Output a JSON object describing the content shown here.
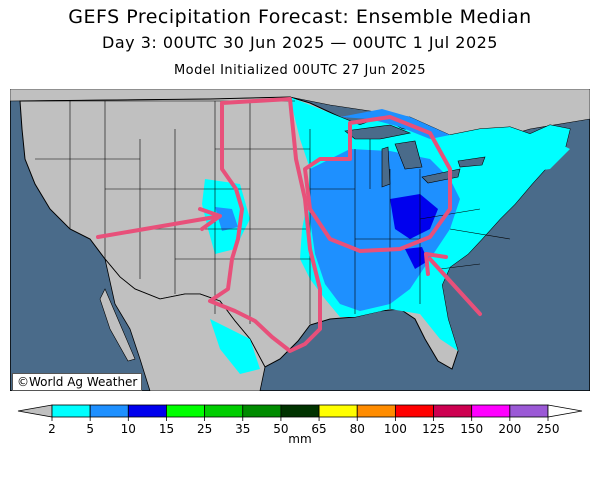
{
  "header": {
    "title": "GEFS Precipitation Forecast: Ensemble Median",
    "valid": "Day 3: 00UTC 30 Jun 2025 — 00UTC 1 Jul 2025",
    "init": "Model Initialized 00UTC 27 Jun 2025"
  },
  "map": {
    "credit": "©World Ag Weather",
    "colors": {
      "ocean": "#4a6b8a",
      "land": "#c0c0c0",
      "borders": "#000000",
      "annotation": "#e8507a"
    }
  },
  "legend": {
    "unit": "mm",
    "ticks": [
      "2",
      "5",
      "10",
      "15",
      "25",
      "35",
      "50",
      "65",
      "80",
      "100",
      "125",
      "150",
      "200",
      "250"
    ],
    "colors": [
      "#00ffff",
      "#1e90ff",
      "#0000ee",
      "#00ff00",
      "#00cd00",
      "#008b00",
      "#003300",
      "#ffff00",
      "#ff8c00",
      "#ff0000",
      "#cd0050",
      "#ff00ff",
      "#9b59d6"
    ]
  }
}
